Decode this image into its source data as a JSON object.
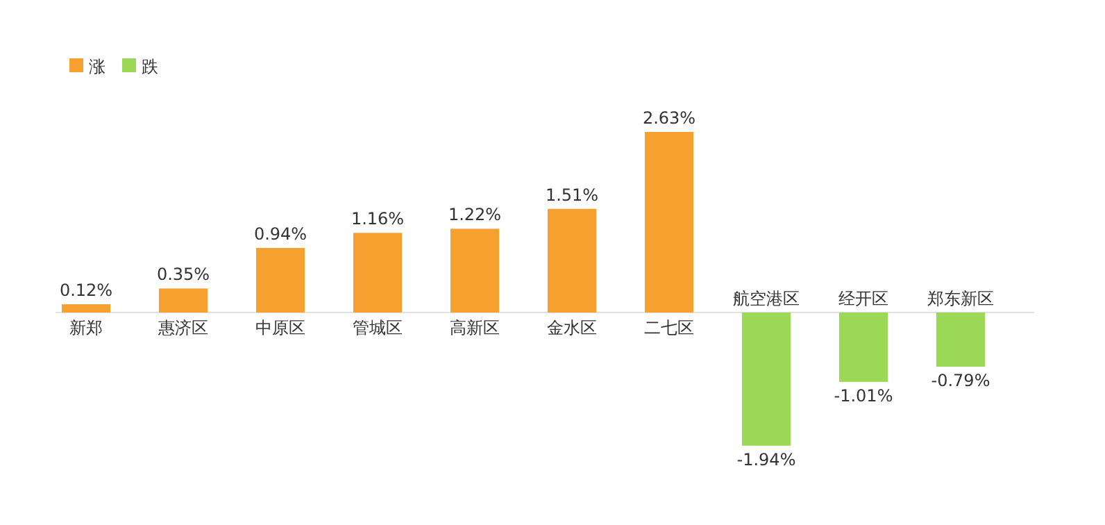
{
  "chart_data": {
    "type": "bar",
    "categories": [
      "新郑",
      "惠济区",
      "中原区",
      "管城区",
      "高新区",
      "金水区",
      "二七区",
      "航空港区",
      "经开区",
      "郑东新区"
    ],
    "legend": "top left",
    "series": [
      {
        "name": "涨",
        "color": "#f6a030",
        "values": [
          0.12,
          0.35,
          0.94,
          1.16,
          1.22,
          1.51,
          2.63,
          null,
          null,
          null
        ],
        "value_labels": [
          "0.12%",
          "0.35%",
          "0.94%",
          "1.16%",
          "1.22%",
          "1.51%",
          "2.63%",
          null,
          null,
          null
        ]
      },
      {
        "name": "跌",
        "color": "#9ad855",
        "values": [
          null,
          null,
          null,
          null,
          null,
          null,
          null,
          -1.94,
          -1.01,
          -0.79
        ],
        "value_labels": [
          null,
          null,
          null,
          null,
          null,
          null,
          null,
          "-1.94%",
          "-1.01%",
          "-0.79%"
        ]
      }
    ]
  }
}
